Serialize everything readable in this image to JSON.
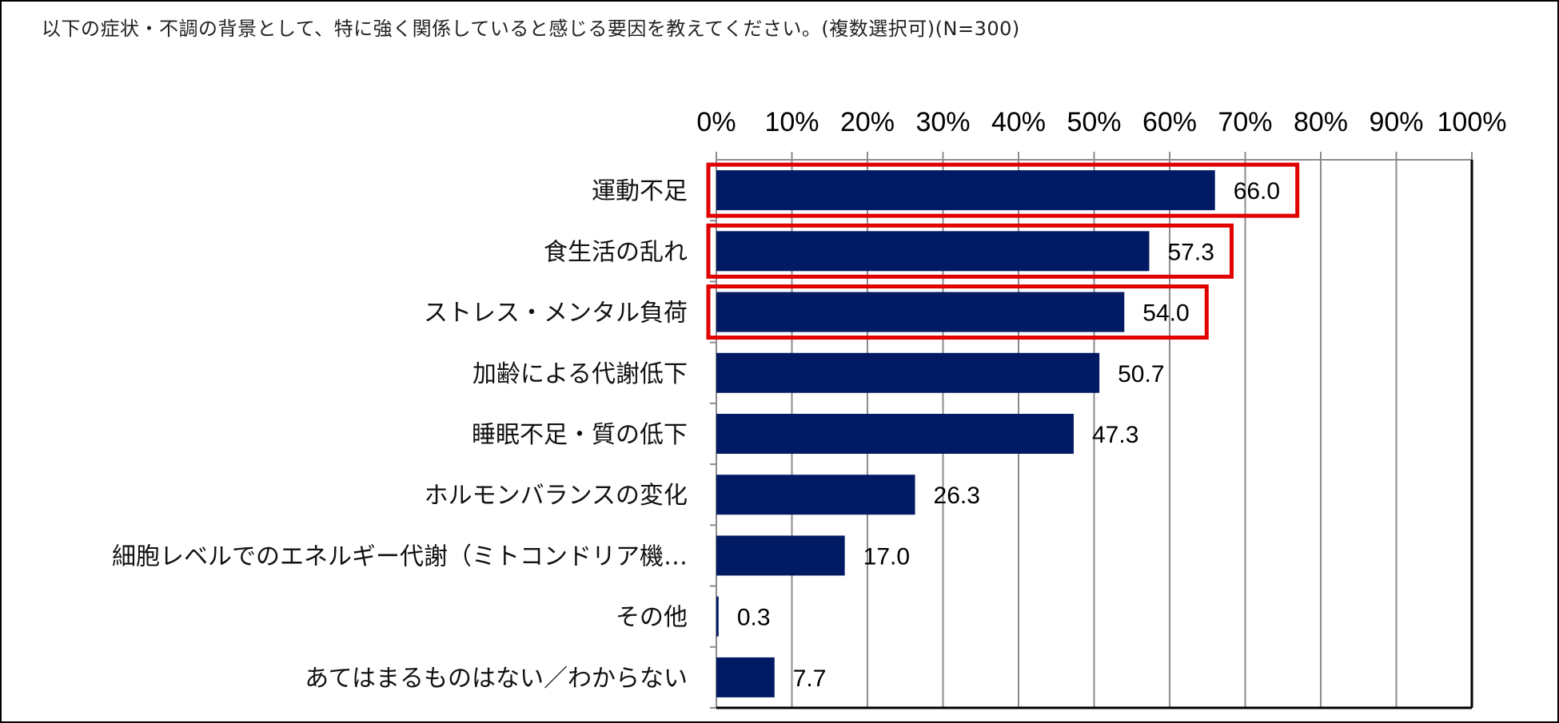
{
  "chart_data": {
    "type": "bar",
    "orientation": "horizontal",
    "title": "以下の症状・不調の背景として、特に強く関係していると感じる要因を教えてください。(複数選択可)(N=300)",
    "categories": [
      "運動不足",
      "食生活の乱れ",
      "ストレス・メンタル負荷",
      "加齢による代謝低下",
      "睡眠不足・質の低下",
      "ホルモンバランスの変化",
      "細胞レベルでのエネルギー代謝（ミトコンドリア機…",
      "その他",
      "あてはまるものはない／わからない"
    ],
    "values": [
      66.0,
      57.3,
      54.0,
      50.7,
      47.3,
      26.3,
      17.0,
      0.3,
      7.7
    ],
    "value_labels": [
      "66.0",
      "57.3",
      "54.0",
      "50.7",
      "47.3",
      "26.3",
      "17.0",
      "0.3",
      "7.7"
    ],
    "highlighted": [
      0,
      1,
      2
    ],
    "xlim": [
      0,
      100
    ],
    "xticks": [
      "0%",
      "10%",
      "20%",
      "30%",
      "40%",
      "50%",
      "60%",
      "70%",
      "80%",
      "90%",
      "100%"
    ],
    "xaxis_position": "top",
    "grid": true,
    "bar_color": "#001a63",
    "highlight_color": "#e00000",
    "xlabel": "",
    "ylabel": ""
  }
}
